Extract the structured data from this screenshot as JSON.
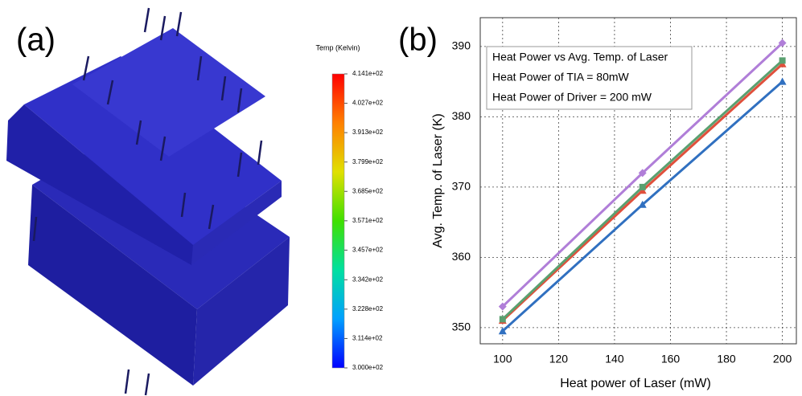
{
  "chart_data": [
    {
      "type": "colorbar",
      "panel_label": "(a)",
      "title": "Temp (Kelvin)",
      "lim": [
        300,
        414.1
      ],
      "colors": [
        "#0000ff",
        "#00a0ff",
        "#00e0a0",
        "#40e000",
        "#e0e000",
        "#ff8000",
        "#ff0000"
      ],
      "ticks": [
        {
          "value": 300,
          "label": "3.000e+02"
        },
        {
          "value": 311.4,
          "label": "3.114e+02"
        },
        {
          "value": 322.8,
          "label": "3.228e+02"
        },
        {
          "value": 334.2,
          "label": "3.342e+02"
        },
        {
          "value": 345.7,
          "label": "3.457e+02"
        },
        {
          "value": 357.1,
          "label": "3.571e+02"
        },
        {
          "value": 368.5,
          "label": "3.685e+02"
        },
        {
          "value": 379.9,
          "label": "3.799e+02"
        },
        {
          "value": 391.3,
          "label": "3.913e+02"
        },
        {
          "value": 402.7,
          "label": "4.027e+02"
        },
        {
          "value": 414.1,
          "label": "4.141e+02"
        }
      ]
    },
    {
      "type": "line",
      "panel_label": "(b)",
      "x_label": "Heat power of Laser (mW)",
      "y_label": "Avg. Temp. of Laser (K)",
      "annotations": [
        "Heat Power vs Avg. Temp. of Laser",
        "Heat Power of TIA = 80mW",
        "Heat Power of Driver = 200 mW"
      ],
      "x": [
        100,
        150,
        200
      ],
      "series": [
        {
          "color": "#b07ed8",
          "marker": "diamond",
          "values": [
            353,
            372,
            390.5
          ]
        },
        {
          "color": "#e0503c",
          "marker": "triangle",
          "values": [
            351,
            369.5,
            387.5
          ]
        },
        {
          "color": "#5aa070",
          "marker": "square",
          "values": [
            351.2,
            370,
            388
          ]
        },
        {
          "color": "#3070c0",
          "marker": "triangle",
          "values": [
            349.5,
            367.5,
            385
          ]
        }
      ],
      "xlim": [
        92,
        205
      ],
      "xticks": [
        100,
        120,
        140,
        160,
        180,
        200
      ],
      "ylim": [
        347.7,
        394.1
      ],
      "yticks": [
        350,
        360,
        370,
        380,
        390
      ],
      "grid": true
    }
  ]
}
